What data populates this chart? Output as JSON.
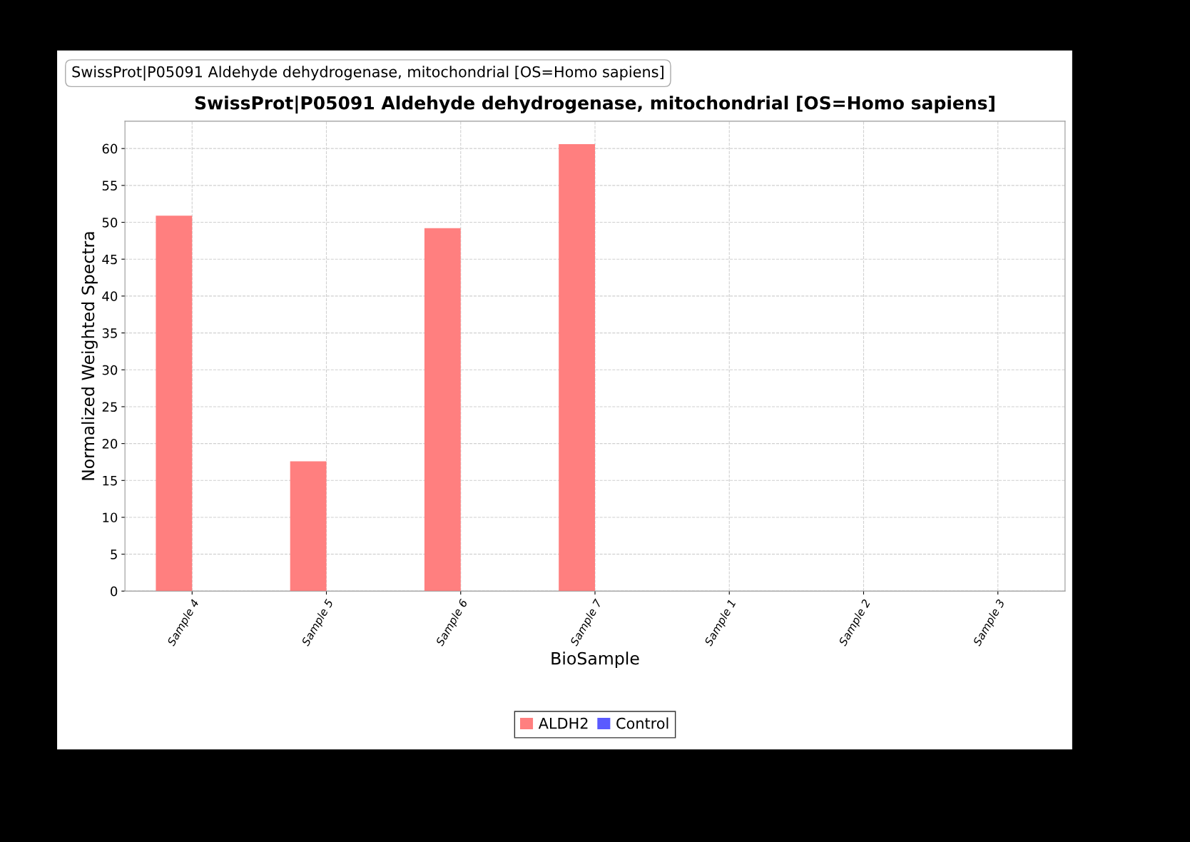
{
  "chart_data": {
    "type": "bar",
    "title": "SwissProt|P05091 Aldehyde dehydrogenase, mitochondrial [OS=Homo sapiens]",
    "annotations": [
      "SwissProt|P05091 Aldehyde dehydrogenase, mitochondrial [OS=Homo sapiens]"
    ],
    "xlabel": "BioSample",
    "ylabel": "Normalized Weighted Spectra",
    "categories": [
      "Sample 4",
      "Sample 5",
      "Sample 6",
      "Sample 7",
      "Sample 1",
      "Sample 2",
      "Sample 3"
    ],
    "series": [
      {
        "name": "ALDH2",
        "color": "#ff7f7f",
        "values": [
          50.9,
          17.6,
          49.2,
          60.6,
          0,
          0,
          0
        ]
      },
      {
        "name": "Control",
        "color": "#5a5aff",
        "values": [
          0,
          0,
          0,
          0,
          0,
          0,
          0
        ]
      }
    ],
    "ylim": [
      0,
      63.7
    ],
    "yticks": [
      0,
      5,
      10,
      15,
      20,
      25,
      30,
      35,
      40,
      45,
      50,
      55,
      60
    ],
    "grid": true,
    "legend": "bottom"
  }
}
